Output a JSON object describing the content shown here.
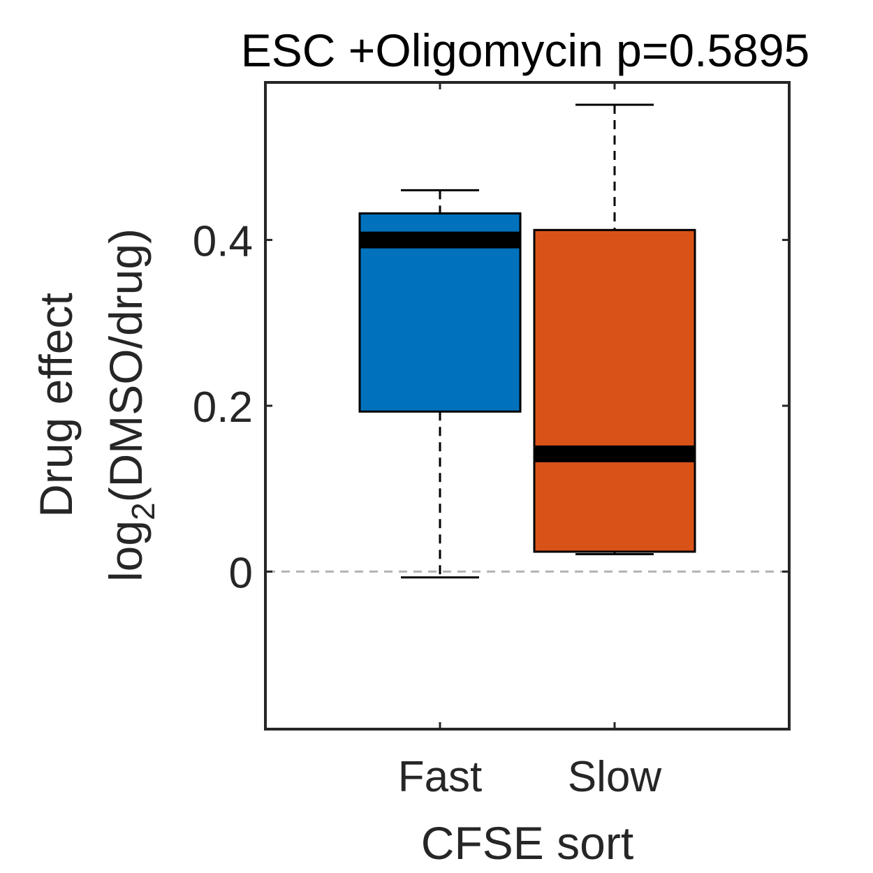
{
  "chart_data": {
    "type": "box",
    "title": "ESC +Oligomycin p=0.5895",
    "xlabel": "CFSE sort",
    "ylabel_line1": "Drug effect",
    "ylabel_line2_prefix": "log",
    "ylabel_line2_sub": "2",
    "ylabel_line2_suffix": "(DMSO/drug)",
    "categories": [
      "Fast",
      "Slow"
    ],
    "ylim": [
      -0.19,
      0.59
    ],
    "yticks": [
      0,
      0.2,
      0.4
    ],
    "ytick_labels": [
      "0",
      "0.2",
      "0.4"
    ],
    "reference_line_y": 0,
    "grid": false,
    "boxes": [
      {
        "name": "Fast",
        "whisker_low": -0.007,
        "q1": 0.193,
        "median": 0.4,
        "q3": 0.432,
        "whisker_high": 0.46,
        "color": "#0072BD"
      },
      {
        "name": "Slow",
        "whisker_low": 0.021,
        "q1": 0.024,
        "median": 0.142,
        "q3": 0.412,
        "whisker_high": 0.563,
        "color": "#D95319"
      }
    ]
  }
}
